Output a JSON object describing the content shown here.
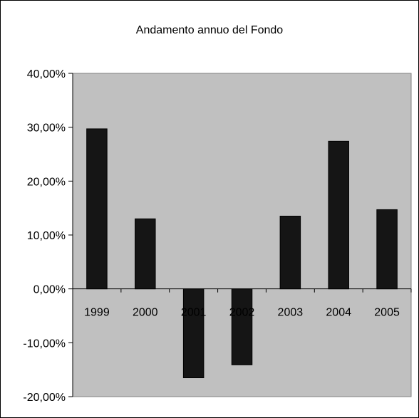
{
  "chart_data": {
    "type": "bar",
    "title": "Andamento annuo del Fondo",
    "xlabel": "",
    "ylabel": "",
    "categories": [
      "1999",
      "2000",
      "2001",
      "2002",
      "2003",
      "2004",
      "2005"
    ],
    "values": [
      29.7,
      13.0,
      -16.5,
      -14.1,
      13.5,
      27.4,
      14.7
    ],
    "ylim": [
      -20,
      40
    ],
    "ytick_step": 10,
    "ytick_labels": [
      "40,00%",
      "30,00%",
      "20,00%",
      "10,00%",
      "0,00%",
      "-10,00%",
      "-20,00%"
    ],
    "grid": false,
    "legend": "none",
    "colors": {
      "plot_background": "#c0c0c0",
      "bar_fill": "#151515",
      "border": "#000000"
    }
  }
}
